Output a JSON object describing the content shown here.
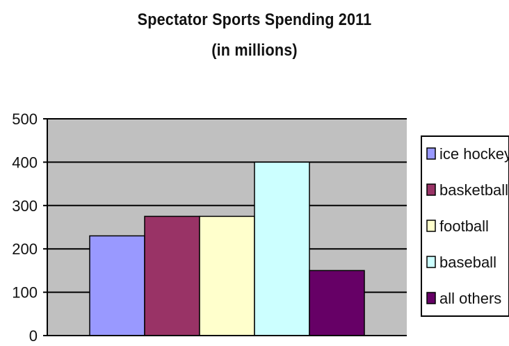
{
  "chart_data": {
    "type": "bar",
    "title": "Spectator Sports Spending 2011",
    "subtitle": "(in millions)",
    "categories": [
      "ice hockey",
      "basketball",
      "football",
      "baseball",
      "all others"
    ],
    "values": [
      230,
      275,
      275,
      400,
      150
    ],
    "colors": [
      "#9999ff",
      "#993366",
      "#ffffcc",
      "#ccffff",
      "#660066"
    ],
    "ylim": [
      0,
      500
    ],
    "yticks": [
      "0",
      "100",
      "200",
      "300",
      "400",
      "500"
    ],
    "grid": true,
    "plot_background": "#c0c0c0",
    "legend_position": "right"
  }
}
